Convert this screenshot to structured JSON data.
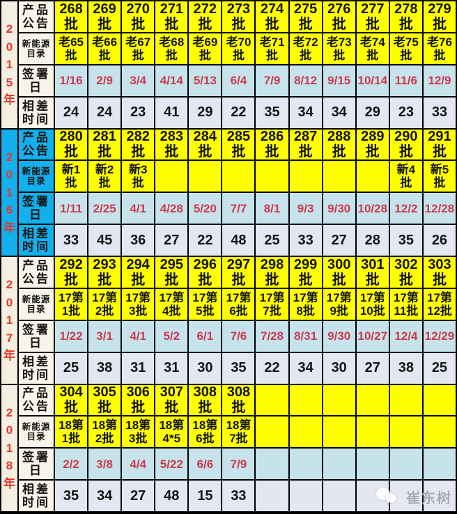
{
  "title": "新能源车目录与产品公告批次签署日对照表",
  "colors": {
    "announce_bg": "#FFFF00",
    "catalog_bg": "#FFFF00",
    "sign_bg": "#C6E3EB",
    "diff_bg": "#E4E7F1",
    "year_bg": "#F4EFE1",
    "highlight_year_bg": "#12B0EC",
    "date_text": "#CC3A4E",
    "year_text": "#E8352C",
    "border": "#000000"
  },
  "row_labels": {
    "announce": "产品\n公告",
    "catalog": "新能源\n目录",
    "sign_date": "签署\n日",
    "diff_days": "相差\n时间"
  },
  "sections": [
    {
      "id": "2015",
      "year": "2\n0\n1\n5\n年",
      "highlight": false,
      "announce": [
        "268\n批",
        "269\n批",
        "270\n批",
        "271\n批",
        "272\n批",
        "273\n批",
        "274\n批",
        "275\n批",
        "276\n批",
        "277\n批",
        "278\n批",
        "279\n批"
      ],
      "catalog": [
        "老65\n批",
        "老66\n批",
        "老67\n批",
        "老68\n批",
        "老69\n批",
        "老70\n批",
        "老71\n批",
        "老72\n批",
        "老73\n批",
        "老74\n批",
        "老75\n批",
        "老76\n批"
      ],
      "sign_date": [
        "1/16",
        "2/9",
        "3/4",
        "4/14",
        "5/13",
        "6/4",
        "7/9",
        "8/12",
        "9/15",
        "10/14",
        "11/6",
        "12/9"
      ],
      "diff_days": [
        "24",
        "24",
        "23",
        "41",
        "29",
        "22",
        "35",
        "34",
        "34",
        "29",
        "23",
        "33"
      ]
    },
    {
      "id": "2016",
      "year": "2\n0\n1\n6\n年",
      "highlight": true,
      "announce": [
        "280\n批",
        "281\n批",
        "282\n批",
        "283\n批",
        "284\n批",
        "285\n批",
        "286\n批",
        "287\n批",
        "288\n批",
        "289\n批",
        "290\n批",
        "291\n批"
      ],
      "catalog": [
        "新1\n批",
        "新2\n批",
        "新3\n批",
        "",
        "",
        "",
        "",
        "",
        "",
        "",
        "新4\n批",
        "新5\n批"
      ],
      "sign_date": [
        "1/11",
        "2/25",
        "4/1",
        "4/28",
        "5/20",
        "7/7",
        "8/1",
        "9/3",
        "9/30",
        "10/28",
        "12/2",
        "12/28"
      ],
      "diff_days": [
        "33",
        "45",
        "36",
        "27",
        "22",
        "48",
        "25",
        "33",
        "27",
        "28",
        "35",
        "26"
      ]
    },
    {
      "id": "2017",
      "year": "2\n0\n1\n7\n年",
      "highlight": false,
      "announce": [
        "292\n批",
        "293\n批",
        "294\n批",
        "295\n批",
        "296\n批",
        "297\n批",
        "298\n批",
        "299\n批",
        "300\n批",
        "301\n批",
        "302\n批",
        "303\n批"
      ],
      "catalog": [
        "17第\n1批",
        "17第\n2批",
        "17第\n3批",
        "17第\n4批",
        "17第\n5批",
        "17第\n6批",
        "17第\n7批",
        "17第\n8批",
        "17第\n9批",
        "17第\n10批",
        "17第\n11批",
        "17第\n12批"
      ],
      "sign_date": [
        "1/22",
        "3/1",
        "4/1",
        "5/2",
        "6/1",
        "7/6",
        "7/28",
        "8/31",
        "9/30",
        "10/27",
        "12/4",
        "12/29"
      ],
      "diff_days": [
        "25",
        "38",
        "31",
        "31",
        "30",
        "35",
        "22",
        "34",
        "30",
        "27",
        "38",
        "25"
      ]
    },
    {
      "id": "2018",
      "year": "2\n0\n1\n8\n年",
      "highlight": false,
      "announce": [
        "304\n批",
        "305\n批",
        "306\n批",
        "307\n批",
        "308\n批",
        "308\n批",
        "",
        "",
        "",
        "",
        "",
        ""
      ],
      "catalog": [
        "18第\n1批",
        "18第\n2批",
        "18第\n3批",
        "18第\n4*5",
        "18第\n6批",
        "18第\n7批",
        "",
        "",
        "",
        "",
        "",
        ""
      ],
      "sign_date": [
        "2/2",
        "3/8",
        "4/4",
        "5/22",
        "6/6",
        "7/9",
        "",
        "",
        "",
        "",
        "",
        ""
      ],
      "diff_days": [
        "35",
        "34",
        "27",
        "48",
        "15",
        "33",
        "",
        "",
        "",
        "",
        "",
        ""
      ]
    }
  ],
  "watermark": {
    "text": "崔东树",
    "icon": "chat-bubbles-icon"
  },
  "chart_data": {
    "type": "table",
    "row_headers": [
      "产品公告",
      "新能源目录",
      "签署日",
      "相差时间"
    ],
    "year_groups": [
      {
        "year": "2015年",
        "产品公告": [
          "268批",
          "269批",
          "270批",
          "271批",
          "272批",
          "273批",
          "274批",
          "275批",
          "276批",
          "277批",
          "278批",
          "279批"
        ],
        "新能源目录": [
          "老65批",
          "老66批",
          "老67批",
          "老68批",
          "老69批",
          "老70批",
          "老71批",
          "老72批",
          "老73批",
          "老74批",
          "老75批",
          "老76批"
        ],
        "签署日": [
          "1/16",
          "2/9",
          "3/4",
          "4/14",
          "5/13",
          "6/4",
          "7/9",
          "8/12",
          "9/15",
          "10/14",
          "11/6",
          "12/9"
        ],
        "相差时间": [
          24,
          24,
          23,
          41,
          29,
          22,
          35,
          34,
          34,
          29,
          23,
          33
        ]
      },
      {
        "year": "2016年",
        "产品公告": [
          "280批",
          "281批",
          "282批",
          "283批",
          "284批",
          "285批",
          "286批",
          "287批",
          "288批",
          "289批",
          "290批",
          "291批"
        ],
        "新能源目录": [
          "新1批",
          "新2批",
          "新3批",
          "",
          "",
          "",
          "",
          "",
          "",
          "",
          "新4批",
          "新5批"
        ],
        "签署日": [
          "1/11",
          "2/25",
          "4/1",
          "4/28",
          "5/20",
          "7/7",
          "8/1",
          "9/3",
          "9/30",
          "10/28",
          "12/2",
          "12/28"
        ],
        "相差时间": [
          33,
          45,
          36,
          27,
          22,
          48,
          25,
          33,
          27,
          28,
          35,
          26
        ]
      },
      {
        "year": "2017年",
        "产品公告": [
          "292批",
          "293批",
          "294批",
          "295批",
          "296批",
          "297批",
          "298批",
          "299批",
          "300批",
          "301批",
          "302批",
          "303批"
        ],
        "新能源目录": [
          "17第1批",
          "17第2批",
          "17第3批",
          "17第4批",
          "17第5批",
          "17第6批",
          "17第7批",
          "17第8批",
          "17第9批",
          "17第10批",
          "17第11批",
          "17第12批"
        ],
        "签署日": [
          "1/22",
          "3/1",
          "4/1",
          "5/2",
          "6/1",
          "7/6",
          "7/28",
          "8/31",
          "9/30",
          "10/27",
          "12/4",
          "12/29"
        ],
        "相差时间": [
          25,
          38,
          31,
          31,
          30,
          35,
          22,
          34,
          30,
          27,
          38,
          25
        ]
      },
      {
        "year": "2018年",
        "产品公告": [
          "304批",
          "305批",
          "306批",
          "307批",
          "308批",
          "308批",
          "",
          "",
          "",
          "",
          "",
          ""
        ],
        "新能源目录": [
          "18第1批",
          "18第2批",
          "18第3批",
          "18第4*5",
          "18第6批",
          "18第7批",
          "",
          "",
          "",
          "",
          "",
          ""
        ],
        "签署日": [
          "2/2",
          "3/8",
          "4/4",
          "5/22",
          "6/6",
          "7/9",
          "",
          "",
          "",
          "",
          "",
          ""
        ],
        "相差时间": [
          35,
          34,
          27,
          48,
          15,
          33,
          "",
          "",
          "",
          "",
          "",
          ""
        ]
      }
    ]
  }
}
